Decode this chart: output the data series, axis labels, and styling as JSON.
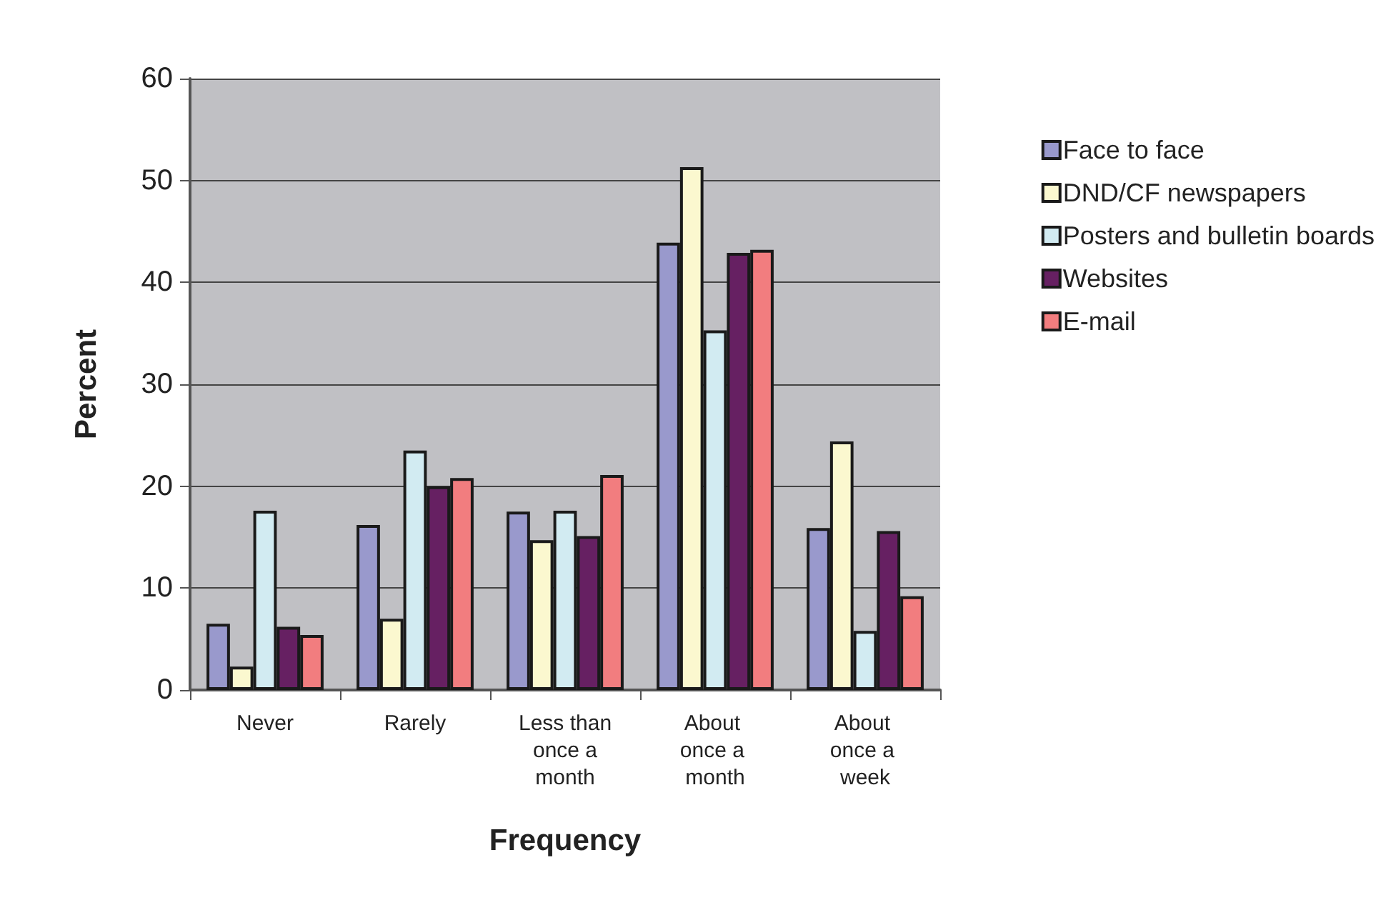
{
  "chart_data": {
    "type": "bar",
    "xlabel": "Frequency",
    "ylabel": "Percent",
    "categories": [
      "Never",
      "Rarely",
      "Less than once a month",
      "About once a month",
      "About once a week"
    ],
    "series": [
      {
        "name": "Face to face",
        "color": "#9999cc",
        "values": [
          6.5,
          16.2,
          17.5,
          43.9,
          15.9
        ]
      },
      {
        "name": "DND/CF newspapers",
        "color": "#fbf8cf",
        "values": [
          2.3,
          7.0,
          14.7,
          51.3,
          24.4
        ]
      },
      {
        "name": "Posters and bulletin boards",
        "color": "#d2ebf2",
        "values": [
          17.6,
          23.5,
          17.6,
          35.3,
          5.8
        ]
      },
      {
        "name": "Websites",
        "color": "#662062",
        "values": [
          6.2,
          20.0,
          15.1,
          42.9,
          15.6
        ]
      },
      {
        "name": "E-mail",
        "color": "#f27d7f",
        "values": [
          5.4,
          20.8,
          21.1,
          43.2,
          9.2
        ]
      }
    ],
    "ylim": [
      0,
      60
    ],
    "yticks": [
      0,
      10,
      20,
      30,
      40,
      50,
      60
    ],
    "grid": "y",
    "legend": "right"
  }
}
